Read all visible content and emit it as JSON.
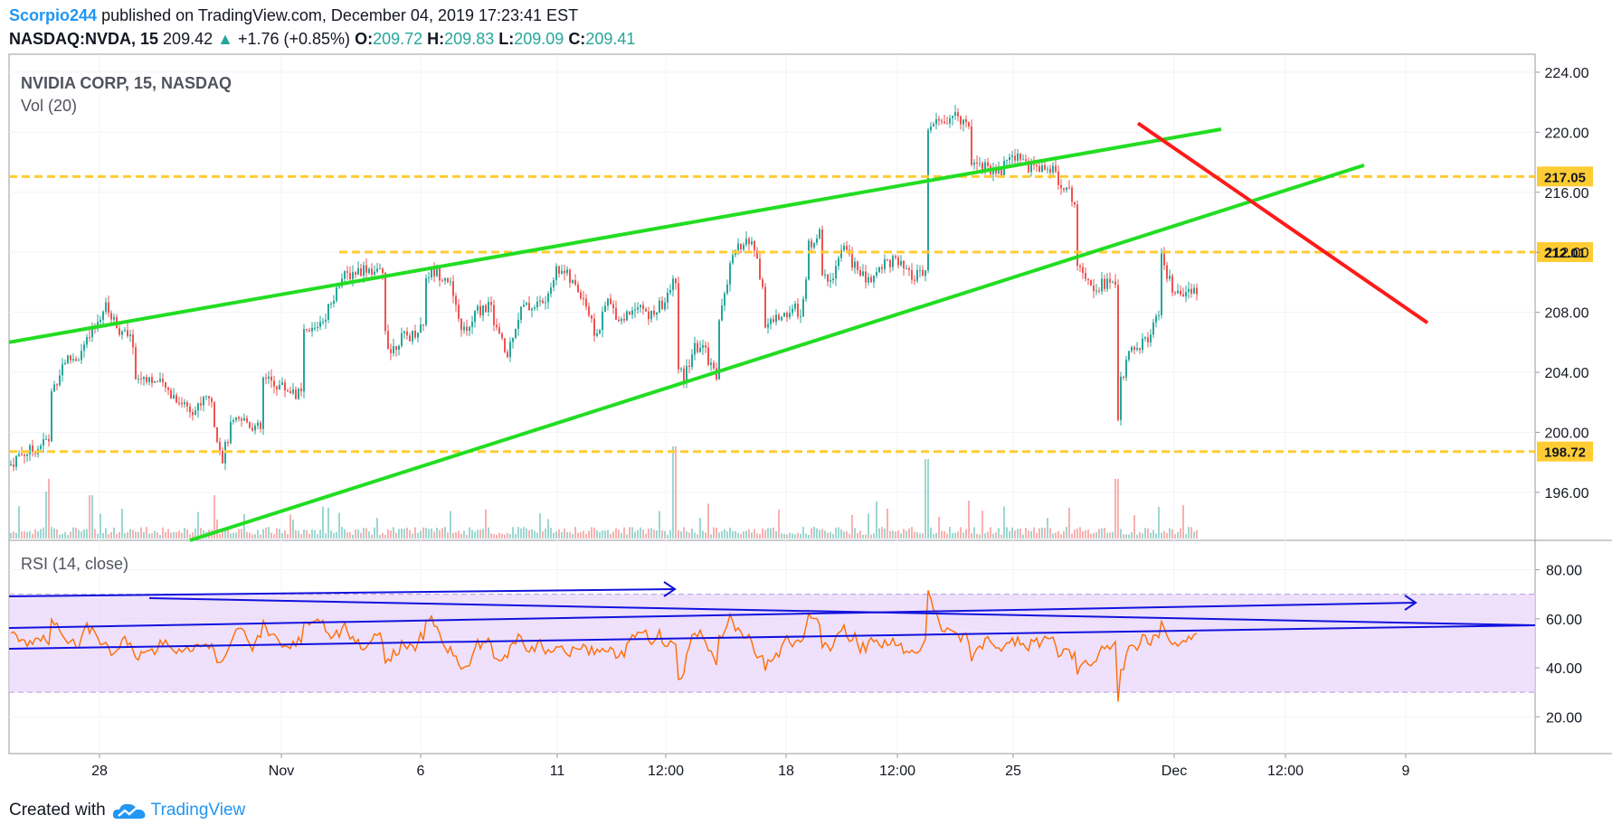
{
  "header": {
    "user": "Scorpio244",
    "published_text": "published on TradingView.com, December 04, 2019 17:23:41 EST",
    "symbol": "NASDAQ:NVDA, 15",
    "last": "209.42",
    "arrow": "▲",
    "change": "+1.76 (+0.85%)",
    "o_label": "O:",
    "o_value": "209.72",
    "h_label": "H:",
    "h_value": "209.83",
    "l_label": "L:",
    "l_value": "209.09",
    "c_label": "C:",
    "c_value": "209.41"
  },
  "legend": {
    "title": "NVIDIA CORP, 15, NASDAQ",
    "volume": "Vol (20)",
    "rsi": "RSI (14, close)"
  },
  "footer": {
    "created_with": "Created with",
    "brand": "TradingView"
  },
  "colors": {
    "up": "#26a69a",
    "down": "#ef5350",
    "trend_green": "#22dd22",
    "trend_red": "#ff1a1a",
    "level": "#ffcc33",
    "rsi_line": "#ff6d00",
    "rsi_band": "#e9d5fa",
    "blue_line": "#1212dd"
  },
  "chart_data": {
    "type": "candlestick",
    "time_labels": [
      "28",
      "Nov",
      "6",
      "11",
      "12:00",
      "18",
      "12:00",
      "25",
      "Dec",
      "12:00",
      "9"
    ],
    "price_axis": {
      "ticks": [
        196,
        200,
        204,
        208,
        212,
        216,
        220,
        224
      ],
      "range": [
        192.8,
        225.2
      ]
    },
    "horizontal_levels": [
      {
        "price": 217.05,
        "label": "217.05"
      },
      {
        "price": 212.01,
        "label": "212.01"
      },
      {
        "price": 198.72,
        "label": "198.72"
      }
    ],
    "trendlines": [
      {
        "color": "green",
        "from": [
          "Oct 25",
          206.0
        ],
        "to": [
          "Nov 29",
          220.2
        ]
      },
      {
        "color": "green",
        "from": [
          "Nov 1",
          192.8
        ],
        "to": [
          "Dec 3",
          217.8
        ]
      },
      {
        "color": "red",
        "from": [
          "Nov 27",
          220.6
        ],
        "to": [
          "Dec 4",
          207.3
        ]
      }
    ],
    "price_path": [
      [
        10,
        197.8
      ],
      [
        20,
        198.5
      ],
      [
        35,
        198.8
      ],
      [
        52,
        199.5
      ],
      [
        55,
        202.5
      ],
      [
        70,
        204.8
      ],
      [
        85,
        205.0
      ],
      [
        100,
        206.5
      ],
      [
        115,
        208.4
      ],
      [
        130,
        207.0
      ],
      [
        145,
        206.0
      ],
      [
        150,
        203.5
      ],
      [
        160,
        203.8
      ],
      [
        175,
        203.2
      ],
      [
        190,
        202.5
      ],
      [
        200,
        202.0
      ],
      [
        215,
        201.5
      ],
      [
        230,
        202.5
      ],
      [
        240,
        199.5
      ],
      [
        245,
        198.3
      ],
      [
        255,
        200.5
      ],
      [
        270,
        200.8
      ],
      [
        285,
        200.2
      ],
      [
        290,
        203.5
      ],
      [
        305,
        203.2
      ],
      [
        320,
        202.8
      ],
      [
        330,
        202.5
      ],
      [
        335,
        206.5
      ],
      [
        345,
        206.8
      ],
      [
        360,
        208.0
      ],
      [
        375,
        210.2
      ],
      [
        390,
        210.7
      ],
      [
        405,
        211.0
      ],
      [
        420,
        210.5
      ],
      [
        425,
        207.0
      ],
      [
        430,
        205.3
      ],
      [
        440,
        206.2
      ],
      [
        455,
        206.5
      ],
      [
        465,
        207.2
      ],
      [
        470,
        210.5
      ],
      [
        480,
        210.7
      ],
      [
        495,
        210.3
      ],
      [
        505,
        207.5
      ],
      [
        515,
        206.5
      ],
      [
        525,
        208.0
      ],
      [
        540,
        208.5
      ],
      [
        550,
        206.5
      ],
      [
        560,
        205.0
      ],
      [
        565,
        206.5
      ],
      [
        575,
        208.2
      ],
      [
        590,
        208.5
      ],
      [
        605,
        208.8
      ],
      [
        610,
        210.5
      ],
      [
        620,
        211.0
      ],
      [
        630,
        210.0
      ],
      [
        645,
        209.0
      ],
      [
        655,
        206.8
      ],
      [
        660,
        206.5
      ],
      [
        670,
        208.8
      ],
      [
        685,
        207.5
      ],
      [
        695,
        208.0
      ],
      [
        705,
        208.8
      ],
      [
        715,
        207.6
      ],
      [
        725,
        208.2
      ],
      [
        735,
        208.7
      ],
      [
        745,
        210.3
      ],
      [
        750,
        204.0
      ],
      [
        755,
        203.5
      ],
      [
        765,
        205.5
      ],
      [
        775,
        205.8
      ],
      [
        785,
        204.5
      ],
      [
        790,
        203.8
      ],
      [
        795,
        207.5
      ],
      [
        805,
        210.8
      ],
      [
        815,
        212.3
      ],
      [
        825,
        212.8
      ],
      [
        835,
        212.0
      ],
      [
        840,
        210.0
      ],
      [
        845,
        207.0
      ],
      [
        855,
        207.5
      ],
      [
        865,
        207.8
      ],
      [
        875,
        208.3
      ],
      [
        885,
        208.0
      ],
      [
        890,
        210.0
      ],
      [
        895,
        212.5
      ],
      [
        905,
        213.3
      ],
      [
        910,
        210.2
      ],
      [
        920,
        210.5
      ],
      [
        930,
        212.3
      ],
      [
        940,
        211.5
      ],
      [
        950,
        210.5
      ],
      [
        960,
        210.0
      ],
      [
        975,
        211.3
      ],
      [
        985,
        211.5
      ],
      [
        995,
        211.0
      ],
      [
        1005,
        210.3
      ],
      [
        1020,
        210.5
      ],
      [
        1025,
        220.2
      ],
      [
        1035,
        220.6
      ],
      [
        1045,
        220.8
      ],
      [
        1060,
        221.0
      ],
      [
        1068,
        220.6
      ],
      [
        1073,
        218.2
      ],
      [
        1085,
        217.8
      ],
      [
        1095,
        217.6
      ],
      [
        1105,
        217.3
      ],
      [
        1115,
        218.4
      ],
      [
        1125,
        218.5
      ],
      [
        1135,
        217.8
      ],
      [
        1145,
        217.6
      ],
      [
        1155,
        217.8
      ],
      [
        1165,
        217.2
      ],
      [
        1175,
        216.5
      ],
      [
        1185,
        215.5
      ],
      [
        1190,
        211.5
      ],
      [
        1200,
        210.5
      ],
      [
        1210,
        209.7
      ],
      [
        1220,
        210.0
      ],
      [
        1230,
        209.8
      ],
      [
        1235,
        201.0
      ],
      [
        1240,
        203.8
      ],
      [
        1250,
        205.5
      ],
      [
        1260,
        205.8
      ],
      [
        1270,
        206.5
      ],
      [
        1278,
        207.5
      ],
      [
        1283,
        211.5
      ],
      [
        1295,
        209.5
      ],
      [
        1305,
        208.8
      ],
      [
        1315,
        209.2
      ],
      [
        1322,
        209.5
      ]
    ],
    "volume_spikes": [
      [
        745,
        102
      ],
      [
        1023,
        88
      ],
      [
        1233,
        66
      ],
      [
        52,
        52
      ],
      [
        236,
        48
      ],
      [
        100,
        48
      ],
      [
        1280,
        35
      ],
      [
        1070,
        42
      ]
    ],
    "rsi": {
      "label": "RSI (14, close)",
      "ticks": [
        20,
        40,
        60,
        80
      ],
      "range": [
        5,
        92
      ],
      "band": [
        30,
        70
      ],
      "last": 55
    }
  }
}
